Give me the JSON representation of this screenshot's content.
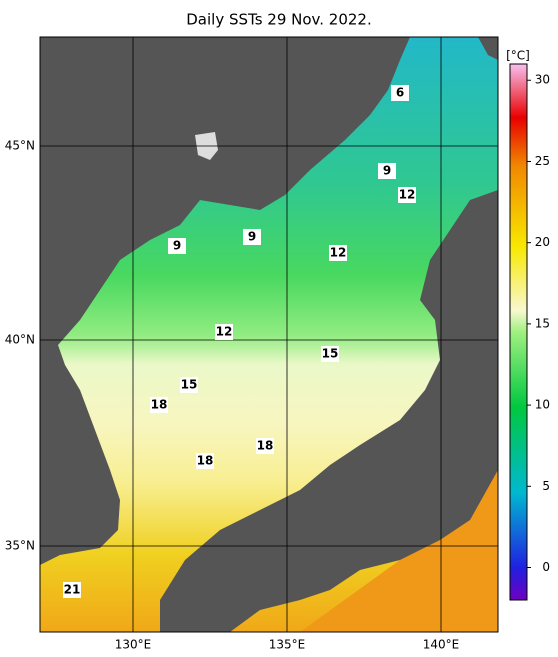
{
  "title": "Daily SSTs 29 Nov. 2022.",
  "lat_labels": [
    "45°N",
    "40°N",
    "35°N"
  ],
  "lon_labels": [
    "130°E",
    "135°E",
    "140°E"
  ],
  "contour_labels": [
    6,
    9,
    12,
    9,
    9,
    12,
    12,
    15,
    15,
    18,
    18,
    18,
    21
  ],
  "colorbar": {
    "unit": "[°C]",
    "lim": [
      -2,
      31
    ],
    "ticks": [
      0,
      5,
      10,
      15,
      20,
      25,
      30
    ]
  }
}
